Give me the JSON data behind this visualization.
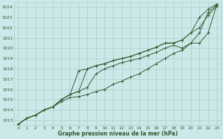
{
  "title": "Graphe pression niveau de la mer (hPa)",
  "xlabel": "Graphe pression niveau de la mer (hPa)",
  "x_ticks": [
    0,
    1,
    2,
    3,
    4,
    5,
    6,
    7,
    8,
    9,
    10,
    11,
    12,
    13,
    14,
    15,
    16,
    17,
    18,
    19,
    20,
    21,
    22,
    23
  ],
  "ylim": [
    1012.5,
    1024.5
  ],
  "xlim": [
    -0.5,
    23.5
  ],
  "yticks": [
    1013,
    1014,
    1015,
    1016,
    1017,
    1018,
    1019,
    1020,
    1021,
    1022,
    1023,
    1024
  ],
  "bg_color": "#cce8e8",
  "grid_color": "#aacccc",
  "line_color": "#2d5a2d",
  "series": [
    [
      1012.6,
      1013.2,
      1013.5,
      1014.0,
      1014.3,
      1014.8,
      1015.2,
      1015.3,
      1015.5,
      1015.8,
      1016.0,
      1016.5,
      1016.8,
      1017.2,
      1017.5,
      1018.0,
      1018.5,
      1019.0,
      1019.5,
      1019.8,
      1020.5,
      1020.5,
      1021.5,
      1024.2
    ],
    [
      1012.6,
      1013.2,
      1013.5,
      1014.0,
      1014.3,
      1015.0,
      1015.5,
      1015.8,
      1016.2,
      1017.5,
      1018.0,
      1018.3,
      1018.6,
      1018.8,
      1019.0,
      1019.3,
      1019.6,
      1020.0,
      1020.3,
      1020.0,
      1020.5,
      1021.5,
      1023.5,
      1024.2
    ],
    [
      1012.6,
      1013.2,
      1013.5,
      1014.0,
      1014.3,
      1015.0,
      1015.5,
      1017.8,
      1018.0,
      1018.3,
      1018.5,
      1018.8,
      1019.0,
      1019.2,
      1019.5,
      1019.8,
      1020.1,
      1020.5,
      1020.5,
      1020.8,
      1021.5,
      1022.0,
      1023.2,
      1024.1
    ],
    [
      1012.6,
      1013.2,
      1013.5,
      1014.0,
      1014.3,
      1015.0,
      1015.5,
      1015.8,
      1018.0,
      1018.3,
      1018.5,
      1018.8,
      1019.0,
      1019.2,
      1019.5,
      1019.8,
      1020.1,
      1020.5,
      1020.5,
      1020.8,
      1021.5,
      1023.0,
      1023.8,
      1024.3
    ]
  ]
}
